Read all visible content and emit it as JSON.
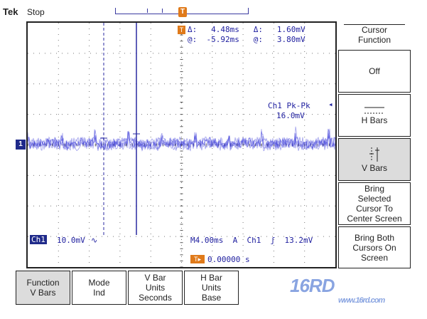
{
  "header": {
    "brand": "Tek",
    "status": "Stop",
    "trigger_icon": "T"
  },
  "cursor_readout": {
    "icon": "T",
    "row1": "Δ:   4.48ms   Δ:   1.60mV",
    "row2": "@:  -5.92ms   @:   3.80mV"
  },
  "measurement": {
    "label": "Ch1 Pk-Pk",
    "value": "16.0mV"
  },
  "status_line": {
    "channel": "Ch1",
    "scale": "10.0mV",
    "coupling": "∿",
    "timebase": "M4.00ms  A  Ch1  ʃ  13.2mV",
    "trigger_offset": "0.00000 s",
    "trigger_offset_icon": "T▸"
  },
  "ground_marker": "1",
  "side_menu": {
    "title_line1": "Cursor",
    "title_line2": "Function",
    "items": [
      {
        "line1": "Off",
        "line2": "",
        "line3": "",
        "line4": ""
      },
      {
        "line1": "H Bars",
        "line2": "",
        "line3": "",
        "line4": ""
      },
      {
        "line1": "V Bars",
        "line2": "",
        "line3": "",
        "line4": ""
      },
      {
        "line1": "Bring",
        "line2": "Selected",
        "line3": "Cursor To",
        "line4": "Center Screen"
      },
      {
        "line1": "Bring Both",
        "line2": "Cursors On",
        "line3": "Screen",
        "line4": ""
      }
    ]
  },
  "bottom_menu": [
    {
      "line1": "Function",
      "line2": "V Bars",
      "line3": ""
    },
    {
      "line1": "Mode",
      "line2": "Ind",
      "line3": ""
    },
    {
      "line1": "V Bar",
      "line2": "Units",
      "line3": "Seconds"
    },
    {
      "line1": "H Bar",
      "line2": "Units",
      "line3": "Base"
    }
  ],
  "watermark": {
    "main": "16RD",
    "sub": "www.16rd.com"
  },
  "colors": {
    "trace": "#3a3ad8",
    "cursor": "#2a2aa0",
    "accent_orange": "#e07a1a",
    "channel_chip": "#1f2a8a"
  }
}
